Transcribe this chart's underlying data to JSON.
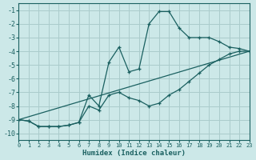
{
  "background_color": "#cce8e8",
  "grid_color": "#aacccc",
  "line_color": "#1a6060",
  "xlabel": "Humidex (Indice chaleur)",
  "xlim": [
    0,
    23
  ],
  "ylim": [
    -10.5,
    -0.5
  ],
  "xticks": [
    0,
    1,
    2,
    3,
    4,
    5,
    6,
    7,
    8,
    9,
    10,
    11,
    12,
    13,
    14,
    15,
    16,
    17,
    18,
    19,
    20,
    21,
    22,
    23
  ],
  "yticks": [
    -1,
    -2,
    -3,
    -4,
    -5,
    -6,
    -7,
    -8,
    -9,
    -10
  ],
  "line1_x": [
    0,
    1,
    2,
    3,
    4,
    5,
    6,
    7,
    8,
    9,
    10,
    11,
    12,
    13,
    14,
    15,
    16,
    17,
    18,
    19,
    20,
    21,
    22,
    23
  ],
  "line1_y": [
    -9.0,
    -9.1,
    -9.5,
    -9.5,
    -9.5,
    -9.4,
    -9.2,
    -7.2,
    -8.0,
    -4.8,
    -3.7,
    -5.5,
    -5.3,
    -2.0,
    -1.1,
    -1.1,
    -2.3,
    -3.0,
    -3.0,
    -3.0,
    -3.3,
    -3.7,
    -3.8,
    -4.0
  ],
  "line2_x": [
    0,
    1,
    2,
    3,
    4,
    5,
    6,
    7,
    8,
    9,
    10,
    11,
    12,
    13,
    14,
    15,
    16,
    17,
    18,
    19,
    20,
    21,
    22,
    23
  ],
  "line2_y": [
    -9.0,
    -9.1,
    -9.5,
    -9.5,
    -9.5,
    -9.4,
    -9.2,
    -8.0,
    -8.3,
    -7.2,
    -7.0,
    -7.4,
    -7.6,
    -8.0,
    -7.8,
    -7.2,
    -6.8,
    -6.2,
    -5.6,
    -5.0,
    -4.6,
    -4.2,
    -4.0,
    -4.0
  ],
  "line3_x": [
    0,
    23
  ],
  "line3_y": [
    -9.0,
    -4.0
  ]
}
